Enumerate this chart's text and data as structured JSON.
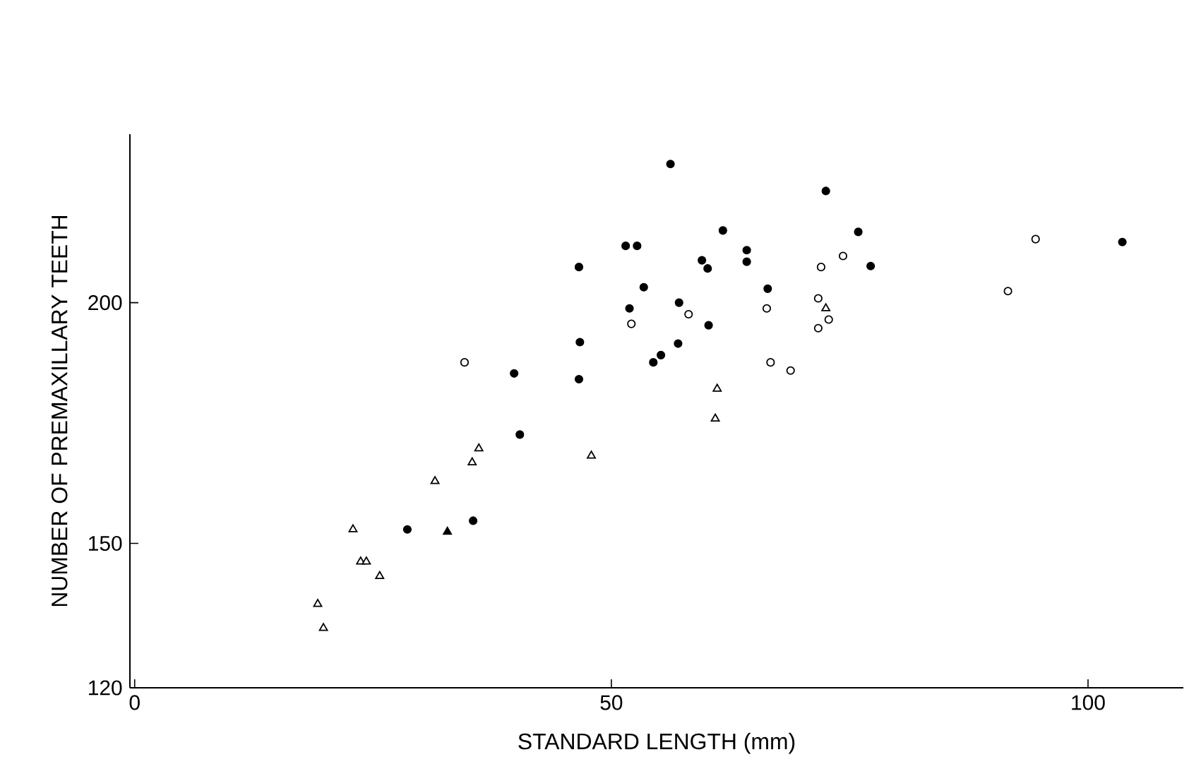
{
  "chart_data": {
    "type": "scatter",
    "xlabel": "STANDARD LENGTH (mm)",
    "ylabel": "NUMBER OF PREMAXILLARY TEETH",
    "xlim": [
      -0.5,
      110
    ],
    "ylim": [
      120,
      235
    ],
    "xticks": [
      0,
      50,
      100
    ],
    "yticks": [
      120,
      150,
      200
    ],
    "grid": false,
    "series": [
      {
        "color": "#000000",
        "marker": "circle",
        "x": [
          28.6,
          35.5,
          40.4,
          46.6,
          46.7,
          39.8,
          46.6,
          51.5,
          52.7,
          51.9,
          56.2,
          72.5,
          61.7,
          75.9,
          59.5,
          60.1,
          64.2,
          64.2,
          77.2,
          53.4,
          57.1,
          66.4,
          60.2,
          57.0,
          55.2,
          54.4,
          103.6
        ],
        "values": [
          152.9,
          154.7,
          172.6,
          207.4,
          191.8,
          185.3,
          184.1,
          211.8,
          211.8,
          198.8,
          228.8,
          223.2,
          215,
          214.7,
          208.8,
          207.1,
          210.9,
          208.5,
          207.6,
          203.2,
          200,
          202.9,
          195.3,
          191.5,
          189.1,
          187.6,
          212.6
        ]
      },
      {
        "color": "#000000",
        "marker": "circle open",
        "x": [
          34.6,
          52.1,
          74.3,
          72.0,
          58.1,
          66.3,
          71.7,
          72.8,
          71.7,
          66.7,
          68.8,
          94.5,
          91.6
        ],
        "values": [
          187.6,
          195.6,
          209.7,
          207.4,
          197.6,
          198.8,
          200.9,
          196.5,
          194.7,
          187.6,
          185.9,
          213.2,
          202.4
        ]
      },
      {
        "color": "#000000",
        "marker": "triangle open",
        "x": [
          72.5,
          61.1,
          60.9,
          36.1,
          35.4,
          31.5,
          47.9,
          22.9,
          23.7,
          24.3,
          25.7,
          19.2,
          19.8
        ],
        "values": [
          198.8,
          182.1,
          175.9,
          169.7,
          166.8,
          162.9,
          168.2,
          152.9,
          146.2,
          146.2,
          143.2,
          137.4,
          132.4
        ]
      },
      {
        "color": "#000000",
        "marker": "triangle",
        "x": [
          32.8
        ],
        "values": [
          152.4
        ]
      }
    ]
  }
}
